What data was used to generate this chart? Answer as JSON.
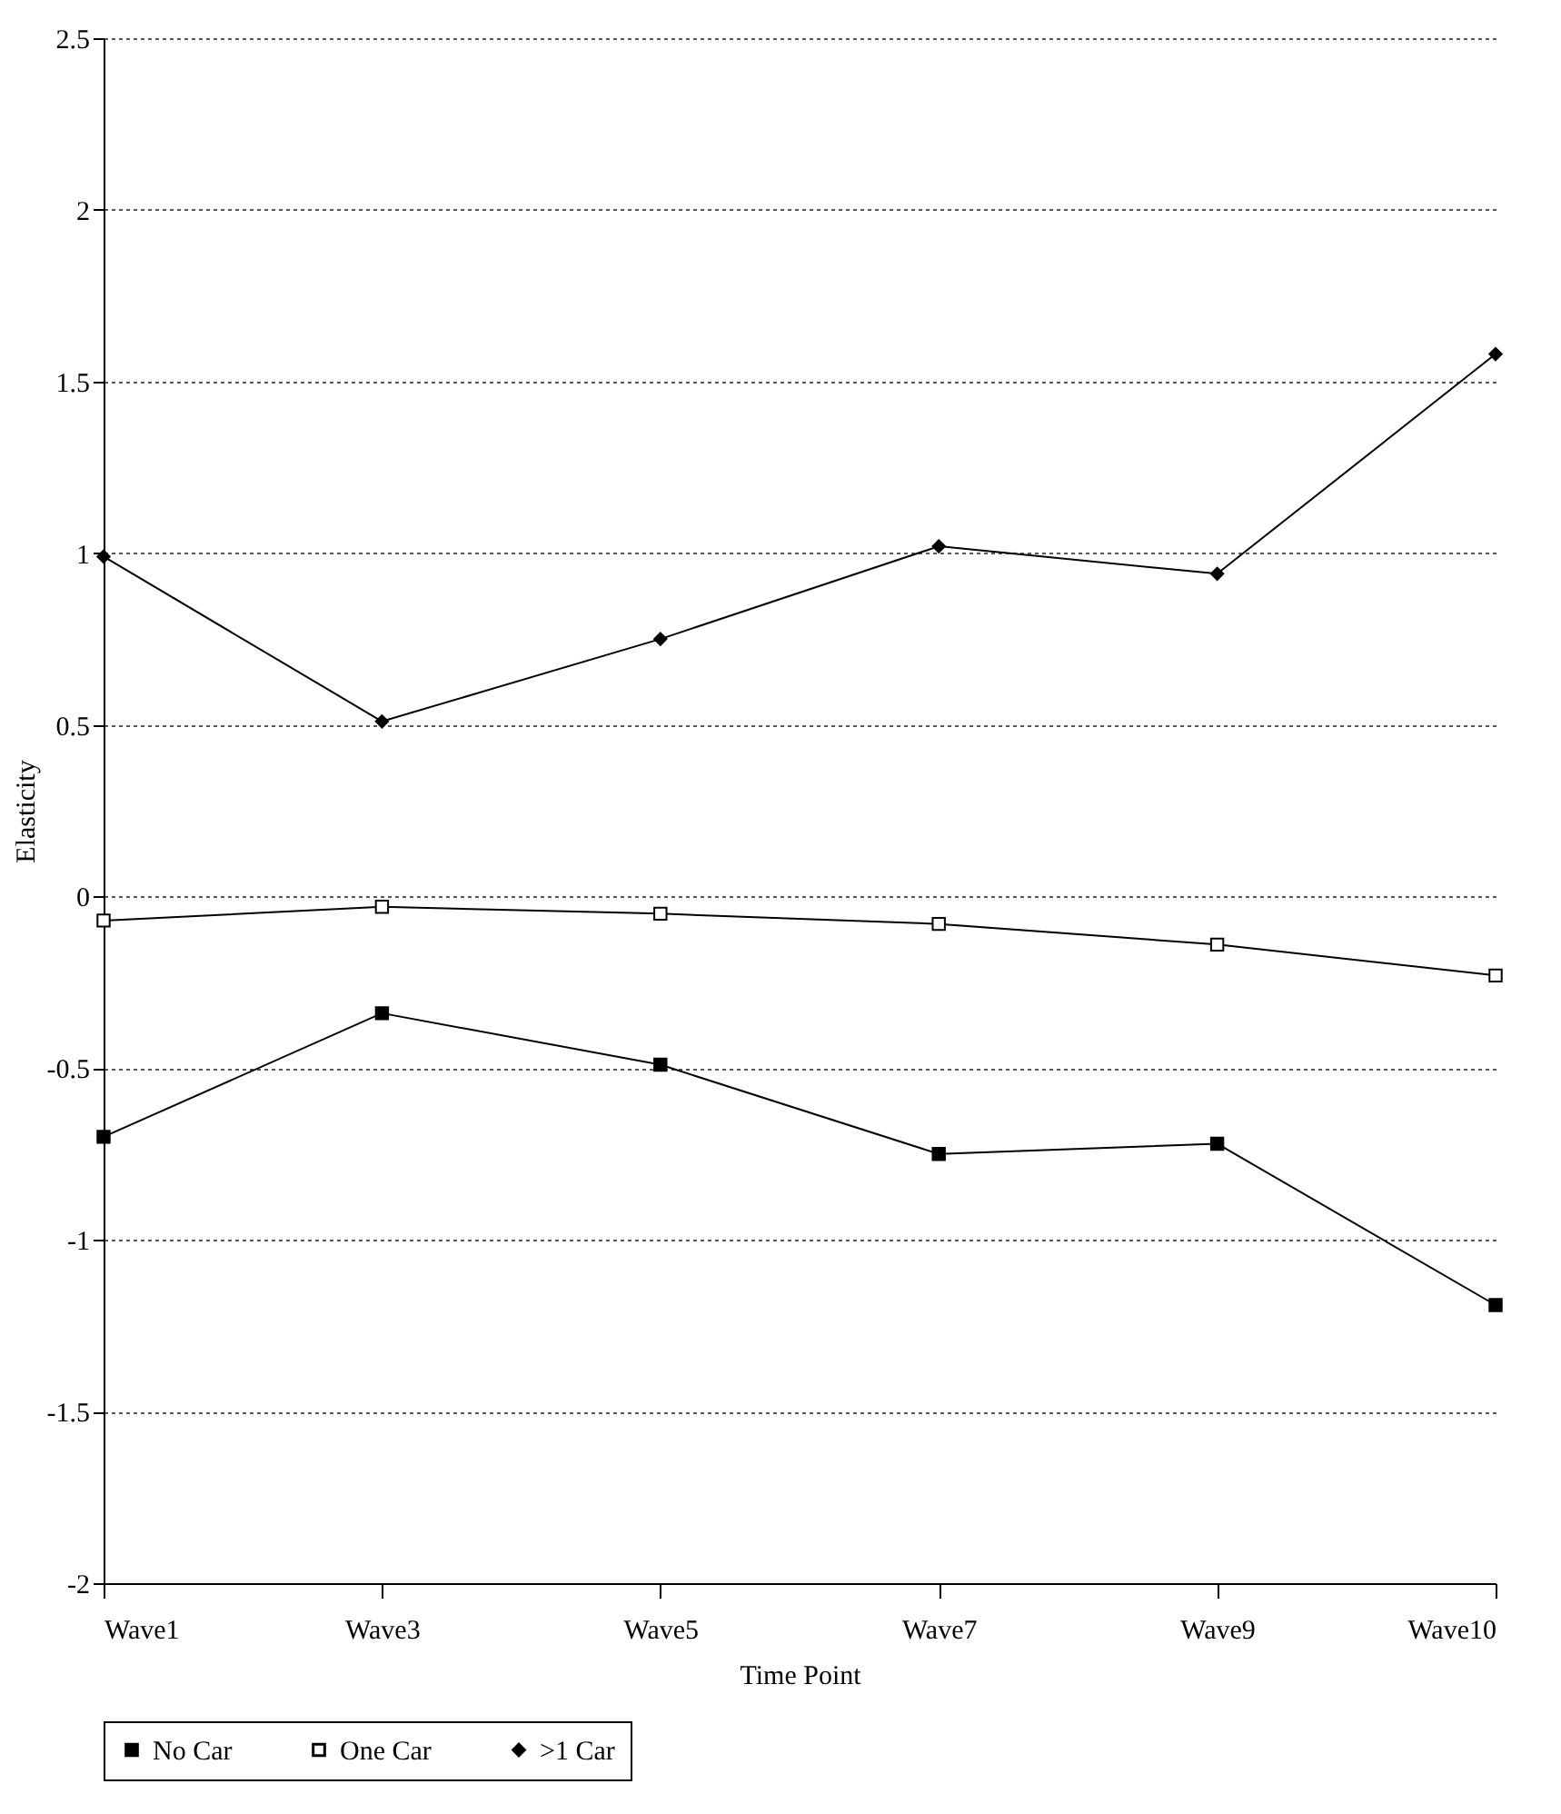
{
  "chart_data": {
    "type": "line",
    "xlabel": "Time Point",
    "ylabel": "Elasticity",
    "categories": [
      "Wave1",
      "Wave3",
      "Wave5",
      "Wave7",
      "Wave9",
      "Wave10"
    ],
    "series": [
      {
        "name": "No Car",
        "color": "#000000",
        "marker": "square",
        "values": [
          -0.7,
          -0.34,
          -0.49,
          -0.75,
          -0.72,
          -1.19
        ]
      },
      {
        "name": "One Car",
        "color": "#000000",
        "marker": "square-open",
        "values": [
          -0.07,
          -0.03,
          -0.05,
          -0.08,
          -0.14,
          -0.23
        ]
      },
      {
        "name": ">1 Car",
        "color": "#000000",
        "marker": "diamond",
        "values": [
          0.99,
          0.51,
          0.75,
          1.02,
          0.94,
          1.58
        ]
      }
    ],
    "ylim": [
      -2,
      2.5
    ],
    "yticks": [
      -2,
      -1.5,
      -1,
      -0.5,
      0,
      0.5,
      1,
      1.5,
      2,
      2.5
    ],
    "grid": "y",
    "legend": "bottom"
  }
}
